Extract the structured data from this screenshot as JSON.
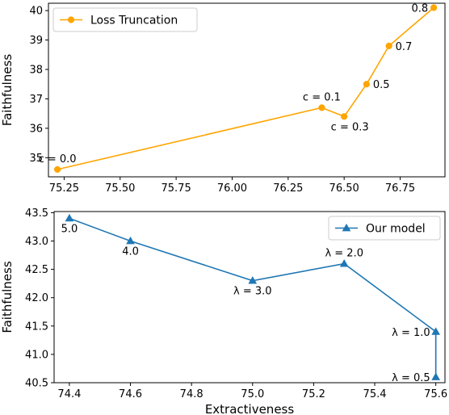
{
  "chart_data": [
    {
      "type": "line",
      "title": "",
      "xlabel": "",
      "ylabel": "Faithfulness",
      "xlim": [
        75.18,
        76.95
      ],
      "ylim": [
        34.35,
        40.25
      ],
      "xticks": [
        75.25,
        75.5,
        75.75,
        76.0,
        76.25,
        76.5,
        76.75
      ],
      "xtick_labels": [
        "75.25",
        "75.50",
        "75.75",
        "76.00",
        "76.25",
        "76.50",
        "76.75"
      ],
      "yticks": [
        35,
        36,
        37,
        38,
        39,
        40
      ],
      "ytick_labels": [
        "35",
        "36",
        "37",
        "38",
        "39",
        "40"
      ],
      "grid": false,
      "legend": {
        "position": "top-left",
        "entries": [
          "Loss Truncation"
        ]
      },
      "series": [
        {
          "name": "Loss Truncation",
          "color": "#FFA500",
          "marker": "circle",
          "x": [
            75.22,
            76.4,
            76.5,
            76.6,
            76.7,
            76.9
          ],
          "y": [
            34.6,
            36.7,
            36.4,
            37.5,
            38.8,
            40.1
          ]
        }
      ],
      "annotations": [
        {
          "text": "c = 0.0",
          "x": 75.22,
          "y": 34.6,
          "anchor": "above"
        },
        {
          "text": "c = 0.1",
          "x": 76.4,
          "y": 36.7,
          "anchor": "above"
        },
        {
          "text": "c = 0.3",
          "x": 76.5,
          "y": 36.4,
          "anchor": "below-right"
        },
        {
          "text": "0.5",
          "x": 76.6,
          "y": 37.5,
          "anchor": "right"
        },
        {
          "text": "0.7",
          "x": 76.7,
          "y": 38.8,
          "anchor": "right"
        },
        {
          "text": "0.8",
          "x": 76.9,
          "y": 40.1,
          "anchor": "left"
        }
      ]
    },
    {
      "type": "line",
      "title": "",
      "xlabel": "Extractiveness",
      "ylabel": "Faithfulness",
      "xlim": [
        74.35,
        75.63
      ],
      "ylim": [
        40.5,
        43.52
      ],
      "xticks": [
        74.4,
        74.6,
        74.8,
        75.0,
        75.2,
        75.4,
        75.6
      ],
      "xtick_labels": [
        "74.4",
        "74.6",
        "74.8",
        "75.0",
        "75.2",
        "75.4",
        "75.6"
      ],
      "yticks": [
        40.5,
        41.0,
        41.5,
        42.0,
        42.5,
        43.0,
        43.5
      ],
      "ytick_labels": [
        "40.5",
        "41.0",
        "41.5",
        "42.0",
        "42.5",
        "43.0",
        "43.5"
      ],
      "grid": false,
      "legend": {
        "position": "top-right",
        "entries": [
          "Our model"
        ]
      },
      "series": [
        {
          "name": "Our model",
          "color": "#1F77B4",
          "marker": "triangle",
          "x": [
            74.4,
            74.6,
            75.0,
            75.3,
            75.6,
            75.6
          ],
          "y": [
            43.4,
            43.0,
            42.3,
            42.6,
            41.4,
            40.6
          ]
        }
      ],
      "annotations": [
        {
          "text": "5.0",
          "x": 74.4,
          "y": 43.4,
          "anchor": "below"
        },
        {
          "text": "4.0",
          "x": 74.6,
          "y": 43.0,
          "anchor": "below"
        },
        {
          "text": "λ = 3.0",
          "x": 75.0,
          "y": 42.3,
          "anchor": "below"
        },
        {
          "text": "λ = 2.0",
          "x": 75.3,
          "y": 42.6,
          "anchor": "above"
        },
        {
          "text": "λ = 1.0",
          "x": 75.6,
          "y": 41.4,
          "anchor": "left"
        },
        {
          "text": "λ = 0.5",
          "x": 75.6,
          "y": 40.6,
          "anchor": "left"
        }
      ]
    }
  ]
}
